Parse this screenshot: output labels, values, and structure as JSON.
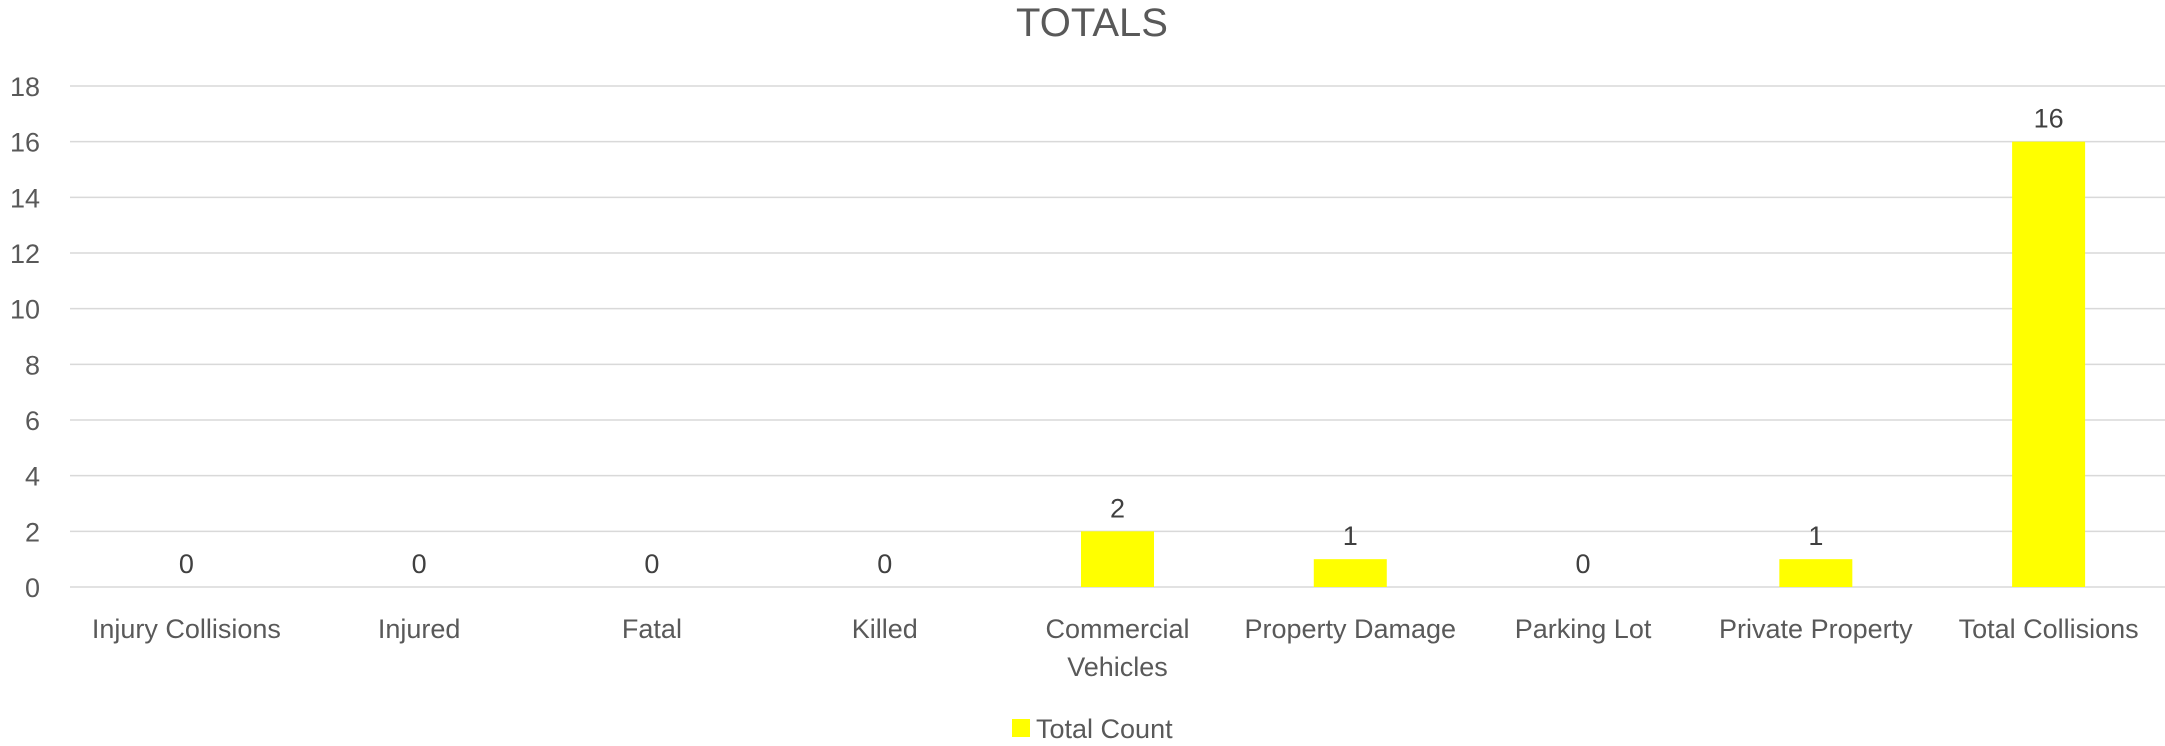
{
  "chart_data": {
    "type": "bar",
    "title": "TOTALS",
    "categories": [
      "Injury Collisions",
      "Injured",
      "Fatal",
      "Killed",
      "Commercial Vehicles",
      "Property Damage",
      "Parking Lot",
      "Private Property",
      "Total Collisions"
    ],
    "category_lines": [
      [
        "Injury Collisions"
      ],
      [
        "Injured"
      ],
      [
        "Fatal"
      ],
      [
        "Killed"
      ],
      [
        "Commercial",
        "Vehicles"
      ],
      [
        "Property Damage"
      ],
      [
        "Parking Lot"
      ],
      [
        "Private Property"
      ],
      [
        "Total Collisions"
      ]
    ],
    "series": [
      {
        "name": "Total Count",
        "values": [
          0,
          0,
          0,
          0,
          2,
          1,
          0,
          1,
          16
        ],
        "color": "#ffff00"
      }
    ],
    "ylim": [
      0,
      18
    ],
    "yticks": [
      0,
      2,
      4,
      6,
      8,
      10,
      12,
      14,
      16,
      18
    ],
    "grid": true,
    "legend_position": "bottom",
    "data_labels": true
  }
}
